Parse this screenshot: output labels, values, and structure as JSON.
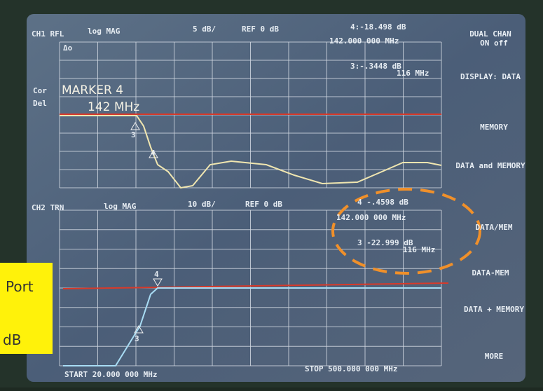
{
  "screen": {
    "ch1": {
      "channel": "CH1 RFL",
      "format": "log MAG",
      "scale": "5 dB/",
      "ref": "REF 0 dB",
      "marker_readout": "4:-18.498 dB",
      "marker_freq": "142.000 000 MHz",
      "marker3_readout": "3:-.3448 dB",
      "marker3_freq": "116 MHz",
      "delta": "Δo",
      "cor": "Cor",
      "del": "Del",
      "marker_title": "MARKER 4",
      "marker_value": "142 MHz",
      "m3": "3",
      "m4": "4"
    },
    "ch2": {
      "channel": "CH2 TRN",
      "format": "log MAG",
      "scale": "10 dB/",
      "ref": "REF 0 dB",
      "marker_readout": "4 -.4598 dB",
      "marker_freq": "142.000 000 MHz",
      "marker3_readout": "3 -22.999 dB",
      "marker3_freq": "116 MHz",
      "m3": "3",
      "m4": "4"
    },
    "start": "START 20.000 000 MHz",
    "stop": "STOP 500.000 000 MHz",
    "softkeys": [
      "DUAL CHAN",
      "ON off",
      "DISPLAY: DATA",
      "MEMORY",
      "DATA and MEMORY",
      "DATA/MEM",
      "DATA-MEM",
      "DATA + MEMORY",
      "MORE"
    ]
  },
  "overlay": {
    "line1": "Port",
    "line2": "dB"
  }
}
